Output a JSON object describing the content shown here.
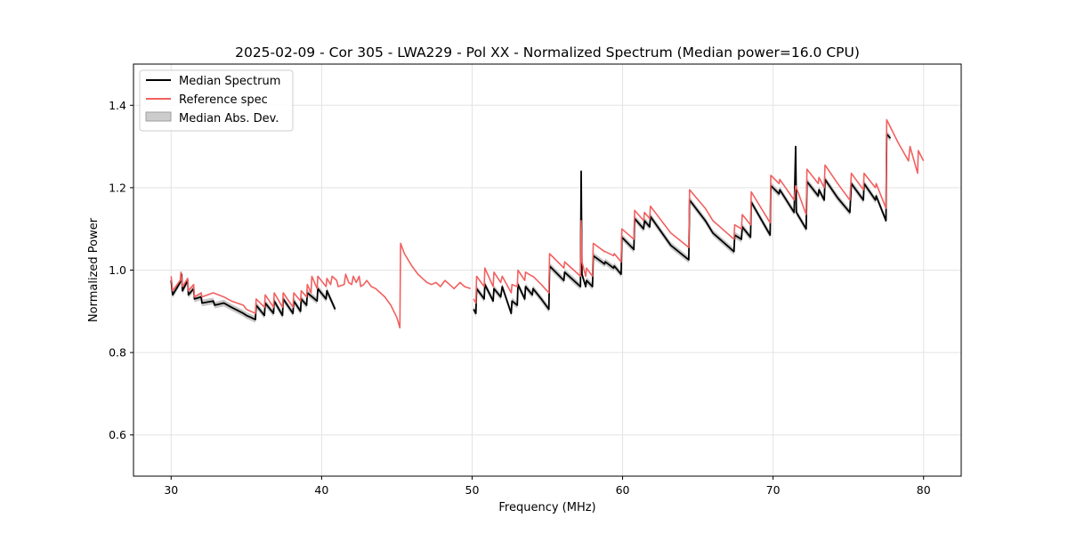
{
  "chart_data": {
    "type": "line",
    "title": "2025-02-09 - Cor 305 - LWA229 - Pol XX - Normalized Spectrum (Median power=16.0 CPU)",
    "xlabel": "Frequency (MHz)",
    "ylabel": "Normalized Power",
    "xlim": [
      27.5,
      82.5
    ],
    "ylim": [
      0.5,
      1.5
    ],
    "xticks": [
      30,
      40,
      50,
      60,
      70,
      80
    ],
    "yticks": [
      0.6,
      0.8,
      1.0,
      1.2,
      1.4
    ],
    "grid": true,
    "legend_position": "top-left",
    "legend": [
      "Median Spectrum",
      "Reference spec",
      "Median Abs. Dev."
    ],
    "colors": {
      "median": "#000000",
      "reference": "#f26060",
      "mad_fill": "#bdbdbd"
    },
    "series": [
      {
        "name": "Median Spectrum",
        "segments": [
          [
            [
              30.0,
              0.975
            ],
            [
              30.1,
              0.94
            ],
            [
              30.6,
              0.97
            ],
            [
              30.7,
              0.99
            ],
            [
              30.75,
              0.95
            ],
            [
              31.1,
              0.975
            ],
            [
              31.15,
              0.94
            ],
            [
              31.5,
              0.955
            ],
            [
              31.55,
              0.93
            ],
            [
              32.0,
              0.935
            ],
            [
              32.05,
              0.92
            ],
            [
              32.8,
              0.925
            ],
            [
              32.9,
              0.915
            ],
            [
              33.5,
              0.92
            ],
            [
              34.0,
              0.91
            ],
            [
              34.8,
              0.895
            ],
            [
              35.0,
              0.89
            ],
            [
              35.3,
              0.885
            ],
            [
              35.6,
              0.88
            ],
            [
              35.65,
              0.915
            ],
            [
              36.2,
              0.89
            ],
            [
              36.25,
              0.92
            ],
            [
              36.8,
              0.895
            ],
            [
              36.85,
              0.925
            ],
            [
              37.4,
              0.89
            ],
            [
              37.45,
              0.93
            ],
            [
              38.1,
              0.895
            ],
            [
              38.15,
              0.925
            ],
            [
              38.6,
              0.9
            ],
            [
              38.65,
              0.93
            ],
            [
              39.0,
              0.915
            ],
            [
              39.05,
              0.945
            ],
            [
              39.7,
              0.925
            ],
            [
              39.75,
              0.955
            ],
            [
              40.3,
              0.93
            ],
            [
              40.35,
              0.95
            ],
            [
              40.9,
              0.905
            ]
          ],
          [
            [
              50.1,
              0.905
            ],
            [
              50.25,
              0.895
            ],
            [
              50.3,
              0.955
            ],
            [
              50.8,
              0.93
            ],
            [
              50.85,
              0.965
            ],
            [
              51.4,
              0.925
            ],
            [
              51.45,
              0.955
            ],
            [
              51.9,
              0.935
            ],
            [
              52.0,
              0.96
            ],
            [
              52.6,
              0.895
            ],
            [
              52.65,
              0.925
            ],
            [
              53.0,
              0.915
            ],
            [
              53.05,
              0.965
            ],
            [
              53.5,
              0.93
            ],
            [
              53.55,
              0.96
            ],
            [
              54.0,
              0.94
            ],
            [
              54.05,
              0.955
            ],
            [
              54.6,
              0.93
            ],
            [
              55.1,
              0.905
            ],
            [
              55.15,
              1.01
            ],
            [
              56.1,
              0.975
            ],
            [
              56.15,
              0.995
            ],
            [
              57.2,
              0.96
            ],
            [
              57.25,
              1.24
            ],
            [
              57.3,
              0.99
            ],
            [
              57.55,
              0.96
            ],
            [
              57.6,
              0.975
            ],
            [
              58.0,
              0.96
            ],
            [
              58.05,
              1.035
            ],
            [
              58.8,
              1.015
            ],
            [
              58.85,
              1.02
            ],
            [
              59.4,
              1.005
            ],
            [
              59.45,
              1.01
            ],
            [
              59.9,
              0.99
            ],
            [
              59.95,
              1.08
            ],
            [
              60.75,
              1.05
            ],
            [
              60.8,
              1.125
            ],
            [
              61.4,
              1.1
            ],
            [
              61.45,
              1.12
            ],
            [
              61.8,
              1.105
            ],
            [
              61.85,
              1.13
            ],
            [
              63.2,
              1.06
            ],
            [
              64.4,
              1.025
            ],
            [
              64.45,
              1.17
            ],
            [
              65.5,
              1.12
            ],
            [
              66.0,
              1.09
            ],
            [
              67.4,
              1.045
            ],
            [
              67.45,
              1.085
            ],
            [
              67.9,
              1.075
            ],
            [
              67.95,
              1.105
            ],
            [
              68.5,
              1.08
            ],
            [
              68.55,
              1.165
            ],
            [
              69.8,
              1.085
            ],
            [
              69.85,
              1.205
            ],
            [
              70.4,
              1.185
            ],
            [
              70.45,
              1.195
            ],
            [
              71.4,
              1.14
            ],
            [
              71.5,
              1.3
            ],
            [
              71.55,
              1.14
            ],
            [
              72.2,
              1.1
            ],
            [
              72.25,
              1.215
            ],
            [
              73.0,
              1.18
            ],
            [
              73.05,
              1.195
            ],
            [
              73.4,
              1.17
            ],
            [
              73.45,
              1.22
            ],
            [
              74.3,
              1.175
            ],
            [
              75.1,
              1.14
            ],
            [
              75.2,
              1.21
            ],
            [
              76.0,
              1.17
            ],
            [
              76.05,
              1.21
            ],
            [
              76.8,
              1.17
            ],
            [
              76.85,
              1.18
            ],
            [
              77.5,
              1.12
            ],
            [
              77.55,
              1.33
            ],
            [
              77.8,
              1.32
            ]
          ]
        ]
      },
      {
        "name": "Reference spec",
        "segments": [
          [
            [
              30.0,
              0.985
            ],
            [
              30.1,
              0.95
            ],
            [
              30.6,
              0.975
            ],
            [
              30.65,
              0.995
            ],
            [
              30.75,
              0.96
            ],
            [
              31.1,
              0.98
            ],
            [
              31.15,
              0.95
            ],
            [
              31.5,
              0.965
            ],
            [
              31.55,
              0.935
            ],
            [
              32.0,
              0.945
            ],
            [
              32.05,
              0.935
            ],
            [
              32.8,
              0.945
            ],
            [
              33.5,
              0.935
            ],
            [
              34.0,
              0.925
            ],
            [
              34.8,
              0.915
            ],
            [
              35.0,
              0.905
            ],
            [
              35.3,
              0.9
            ],
            [
              35.6,
              0.895
            ],
            [
              35.65,
              0.93
            ],
            [
              36.2,
              0.91
            ],
            [
              36.25,
              0.94
            ],
            [
              36.8,
              0.91
            ],
            [
              36.85,
              0.945
            ],
            [
              37.4,
              0.91
            ],
            [
              37.45,
              0.945
            ],
            [
              38.1,
              0.91
            ],
            [
              38.15,
              0.945
            ],
            [
              38.6,
              0.925
            ],
            [
              38.65,
              0.95
            ],
            [
              39.0,
              0.935
            ],
            [
              39.05,
              0.965
            ],
            [
              39.3,
              0.945
            ],
            [
              39.35,
              0.985
            ],
            [
              39.7,
              0.955
            ],
            [
              39.75,
              0.985
            ],
            [
              40.3,
              0.96
            ],
            [
              40.35,
              0.98
            ],
            [
              40.6,
              0.965
            ],
            [
              40.7,
              0.985
            ],
            [
              41.0,
              0.975
            ],
            [
              41.1,
              0.96
            ],
            [
              41.5,
              0.965
            ],
            [
              41.6,
              0.99
            ],
            [
              41.8,
              0.97
            ],
            [
              42.0,
              0.965
            ],
            [
              42.1,
              0.985
            ],
            [
              42.3,
              0.97
            ],
            [
              42.5,
              0.985
            ],
            [
              42.6,
              0.96
            ],
            [
              42.8,
              0.965
            ],
            [
              43.0,
              0.975
            ],
            [
              43.3,
              0.96
            ],
            [
              43.6,
              0.955
            ],
            [
              43.9,
              0.945
            ],
            [
              44.2,
              0.935
            ],
            [
              44.6,
              0.915
            ],
            [
              45.0,
              0.885
            ],
            [
              45.2,
              0.86
            ],
            [
              45.25,
              1.065
            ],
            [
              45.5,
              1.04
            ],
            [
              46.0,
              1.01
            ],
            [
              46.4,
              0.99
            ],
            [
              46.7,
              0.98
            ],
            [
              47.0,
              0.97
            ],
            [
              47.3,
              0.965
            ],
            [
              47.6,
              0.97
            ],
            [
              47.9,
              0.96
            ],
            [
              48.2,
              0.975
            ],
            [
              48.5,
              0.965
            ],
            [
              48.8,
              0.955
            ],
            [
              49.2,
              0.97
            ],
            [
              49.5,
              0.96
            ],
            [
              49.9,
              0.955
            ]
          ],
          [
            [
              50.1,
              0.93
            ],
            [
              50.25,
              0.92
            ],
            [
              50.3,
              0.985
            ],
            [
              50.8,
              0.96
            ],
            [
              50.85,
              1.005
            ],
            [
              51.4,
              0.96
            ],
            [
              51.45,
              0.995
            ],
            [
              51.9,
              0.97
            ],
            [
              52.0,
              0.985
            ],
            [
              52.6,
              0.945
            ],
            [
              52.65,
              0.965
            ],
            [
              53.0,
              0.96
            ],
            [
              53.05,
              1.0
            ],
            [
              53.5,
              0.975
            ],
            [
              53.55,
              0.995
            ],
            [
              54.0,
              0.985
            ],
            [
              54.05,
              0.985
            ],
            [
              54.6,
              0.965
            ],
            [
              55.1,
              0.945
            ],
            [
              55.15,
              1.04
            ],
            [
              56.1,
              1.005
            ],
            [
              56.15,
              1.02
            ],
            [
              57.2,
              0.985
            ],
            [
              57.25,
              1.12
            ],
            [
              57.3,
              1.02
            ],
            [
              57.55,
              0.985
            ],
            [
              57.6,
              1.005
            ],
            [
              58.0,
              0.985
            ],
            [
              58.05,
              1.065
            ],
            [
              58.8,
              1.045
            ],
            [
              58.85,
              1.045
            ],
            [
              59.4,
              1.035
            ],
            [
              59.45,
              1.04
            ],
            [
              59.9,
              1.02
            ],
            [
              59.95,
              1.1
            ],
            [
              60.75,
              1.075
            ],
            [
              60.8,
              1.145
            ],
            [
              61.4,
              1.12
            ],
            [
              61.45,
              1.14
            ],
            [
              61.8,
              1.125
            ],
            [
              61.85,
              1.155
            ],
            [
              63.2,
              1.09
            ],
            [
              64.4,
              1.055
            ],
            [
              64.45,
              1.195
            ],
            [
              65.5,
              1.15
            ],
            [
              66.0,
              1.12
            ],
            [
              67.4,
              1.075
            ],
            [
              67.45,
              1.11
            ],
            [
              67.9,
              1.1
            ],
            [
              67.95,
              1.135
            ],
            [
              68.5,
              1.11
            ],
            [
              68.55,
              1.19
            ],
            [
              69.8,
              1.115
            ],
            [
              69.85,
              1.23
            ],
            [
              70.4,
              1.21
            ],
            [
              70.45,
              1.22
            ],
            [
              71.4,
              1.17
            ],
            [
              71.5,
              1.205
            ],
            [
              72.2,
              1.135
            ],
            [
              72.25,
              1.245
            ],
            [
              73.0,
              1.21
            ],
            [
              73.05,
              1.225
            ],
            [
              73.4,
              1.2
            ],
            [
              73.45,
              1.255
            ],
            [
              74.3,
              1.21
            ],
            [
              75.1,
              1.17
            ],
            [
              75.2,
              1.235
            ],
            [
              76.0,
              1.195
            ],
            [
              76.05,
              1.235
            ],
            [
              76.8,
              1.2
            ],
            [
              76.85,
              1.21
            ],
            [
              77.5,
              1.15
            ],
            [
              77.55,
              1.365
            ],
            [
              78.3,
              1.31
            ],
            [
              79.0,
              1.265
            ],
            [
              79.1,
              1.3
            ],
            [
              79.6,
              1.235
            ],
            [
              79.65,
              1.29
            ],
            [
              80.0,
              1.265
            ]
          ]
        ]
      }
    ],
    "mad_halfwidth": 0.008
  }
}
